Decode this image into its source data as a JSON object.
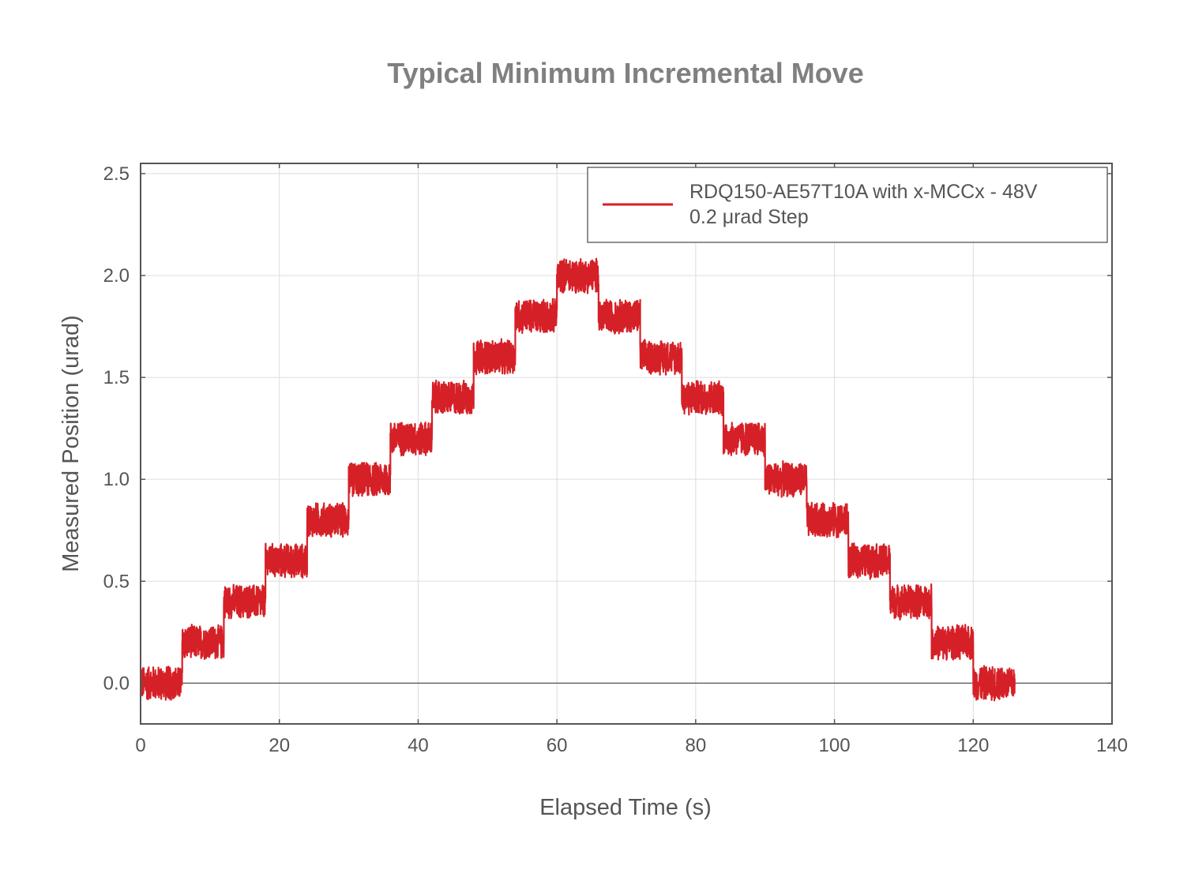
{
  "chart_data": {
    "type": "line",
    "title": "Typical Minimum Incremental Move",
    "xlabel": "Elapsed Time (s)",
    "ylabel": "Measured Position (urad)",
    "xlim": [
      0,
      140
    ],
    "ylim": [
      -0.2,
      2.55
    ],
    "xticks": [
      0,
      20,
      40,
      60,
      80,
      100,
      120,
      140
    ],
    "xtick_labels": [
      "0",
      "20",
      "40",
      "60",
      "80",
      "100",
      "120",
      "140"
    ],
    "yticks": [
      0.0,
      0.5,
      1.0,
      1.5,
      2.0,
      2.5
    ],
    "ytick_labels": [
      "0.0",
      "0.5",
      "1.0",
      "1.5",
      "2.0",
      "2.5"
    ],
    "grid": true,
    "zero_line": true,
    "legend_position": "top-right",
    "legend_lines": [
      "RDQ150-AE57T10A with x-MCCx - 48V",
      "0.2 μrad Step"
    ],
    "series": [
      {
        "name": "RDQ150-AE57T10A with x-MCCx - 48V 0.2 μrad Step",
        "color": "#d62027",
        "noise_peak_to_peak": 0.18,
        "step_duration_s": 6,
        "steps": [
          {
            "t_start": 0,
            "t_end": 6,
            "position": 0.0
          },
          {
            "t_start": 6,
            "t_end": 12,
            "position": 0.2
          },
          {
            "t_start": 12,
            "t_end": 18,
            "position": 0.4
          },
          {
            "t_start": 18,
            "t_end": 24,
            "position": 0.6
          },
          {
            "t_start": 24,
            "t_end": 30,
            "position": 0.8
          },
          {
            "t_start": 30,
            "t_end": 36,
            "position": 1.0
          },
          {
            "t_start": 36,
            "t_end": 42,
            "position": 1.2
          },
          {
            "t_start": 42,
            "t_end": 48,
            "position": 1.4
          },
          {
            "t_start": 48,
            "t_end": 54,
            "position": 1.6
          },
          {
            "t_start": 54,
            "t_end": 60,
            "position": 1.8
          },
          {
            "t_start": 60,
            "t_end": 66,
            "position": 2.0
          },
          {
            "t_start": 66,
            "t_end": 72,
            "position": 1.8
          },
          {
            "t_start": 72,
            "t_end": 78,
            "position": 1.6
          },
          {
            "t_start": 78,
            "t_end": 84,
            "position": 1.4
          },
          {
            "t_start": 84,
            "t_end": 90,
            "position": 1.2
          },
          {
            "t_start": 90,
            "t_end": 96,
            "position": 1.0
          },
          {
            "t_start": 96,
            "t_end": 102,
            "position": 0.8
          },
          {
            "t_start": 102,
            "t_end": 108,
            "position": 0.6
          },
          {
            "t_start": 108,
            "t_end": 114,
            "position": 0.4
          },
          {
            "t_start": 114,
            "t_end": 120,
            "position": 0.2
          },
          {
            "t_start": 120,
            "t_end": 126,
            "position": 0.0
          }
        ]
      }
    ]
  }
}
